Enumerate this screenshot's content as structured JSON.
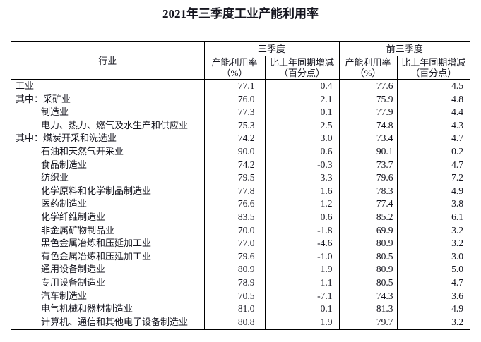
{
  "page": {
    "title": "2021年三季度工业产能利用率"
  },
  "table": {
    "industry_header": "行业",
    "groups": [
      {
        "label": "三季度",
        "sub": [
          {
            "line1": "产能利用率",
            "line2": "（%）"
          },
          {
            "line1": "比上年同期增减",
            "line2": "（百分点）"
          }
        ]
      },
      {
        "label": "前三季度",
        "sub": [
          {
            "line1": "产能利用率",
            "line2": "（%）"
          },
          {
            "line1": "比上年同期增减",
            "line2": "（百分点）"
          }
        ]
      }
    ],
    "rows": [
      {
        "label": "工业",
        "indent": false,
        "q3_rate": "77.1",
        "q3_change": "0.4",
        "ytd_rate": "77.6",
        "ytd_change": "4.5"
      },
      {
        "label": "其中：采矿业",
        "indent": false,
        "q3_rate": "76.0",
        "q3_change": "2.1",
        "ytd_rate": "75.9",
        "ytd_change": "4.8"
      },
      {
        "label": "制造业",
        "indent": true,
        "q3_rate": "77.3",
        "q3_change": "0.1",
        "ytd_rate": "77.9",
        "ytd_change": "4.4"
      },
      {
        "label": "电力、热力、燃气及水生产和供应业",
        "indent": true,
        "q3_rate": "75.3",
        "q3_change": "2.5",
        "ytd_rate": "74.8",
        "ytd_change": "4.3"
      },
      {
        "label": "其中：煤炭开采和洗选业",
        "indent": false,
        "q3_rate": "74.2",
        "q3_change": "3.0",
        "ytd_rate": "73.4",
        "ytd_change": "4.7"
      },
      {
        "label": "石油和天然气开采业",
        "indent": true,
        "q3_rate": "90.0",
        "q3_change": "0.6",
        "ytd_rate": "90.1",
        "ytd_change": "0.2"
      },
      {
        "label": "食品制造业",
        "indent": true,
        "q3_rate": "74.2",
        "q3_change": "-0.3",
        "ytd_rate": "73.7",
        "ytd_change": "4.7"
      },
      {
        "label": "纺织业",
        "indent": true,
        "q3_rate": "79.5",
        "q3_change": "3.3",
        "ytd_rate": "79.6",
        "ytd_change": "7.2"
      },
      {
        "label": "化学原料和化学制品制造业",
        "indent": true,
        "q3_rate": "77.8",
        "q3_change": "1.6",
        "ytd_rate": "78.3",
        "ytd_change": "4.9"
      },
      {
        "label": "医药制造业",
        "indent": true,
        "q3_rate": "76.6",
        "q3_change": "1.2",
        "ytd_rate": "77.4",
        "ytd_change": "3.8"
      },
      {
        "label": "化学纤维制造业",
        "indent": true,
        "q3_rate": "83.5",
        "q3_change": "0.6",
        "ytd_rate": "85.2",
        "ytd_change": "6.1"
      },
      {
        "label": "非金属矿物制品业",
        "indent": true,
        "q3_rate": "70.0",
        "q3_change": "-1.8",
        "ytd_rate": "69.9",
        "ytd_change": "3.2"
      },
      {
        "label": "黑色金属冶炼和压延加工业",
        "indent": true,
        "q3_rate": "77.0",
        "q3_change": "-4.6",
        "ytd_rate": "80.9",
        "ytd_change": "3.2"
      },
      {
        "label": "有色金属冶炼和压延加工业",
        "indent": true,
        "q3_rate": "79.6",
        "q3_change": "-1.0",
        "ytd_rate": "80.5",
        "ytd_change": "3.0"
      },
      {
        "label": "通用设备制造业",
        "indent": true,
        "q3_rate": "80.9",
        "q3_change": "1.9",
        "ytd_rate": "80.9",
        "ytd_change": "5.0"
      },
      {
        "label": "专用设备制造业",
        "indent": true,
        "q3_rate": "78.9",
        "q3_change": "1.1",
        "ytd_rate": "80.5",
        "ytd_change": "4.7"
      },
      {
        "label": "汽车制造业",
        "indent": true,
        "q3_rate": "70.5",
        "q3_change": "-7.1",
        "ytd_rate": "74.3",
        "ytd_change": "3.6"
      },
      {
        "label": "电气机械和器材制造业",
        "indent": true,
        "q3_rate": "81.0",
        "q3_change": "0.1",
        "ytd_rate": "81.3",
        "ytd_change": "4.9"
      },
      {
        "label": "计算机、通信和其他电子设备制造业",
        "indent": true,
        "q3_rate": "80.8",
        "q3_change": "1.9",
        "ytd_rate": "79.7",
        "ytd_change": "3.2"
      }
    ]
  }
}
